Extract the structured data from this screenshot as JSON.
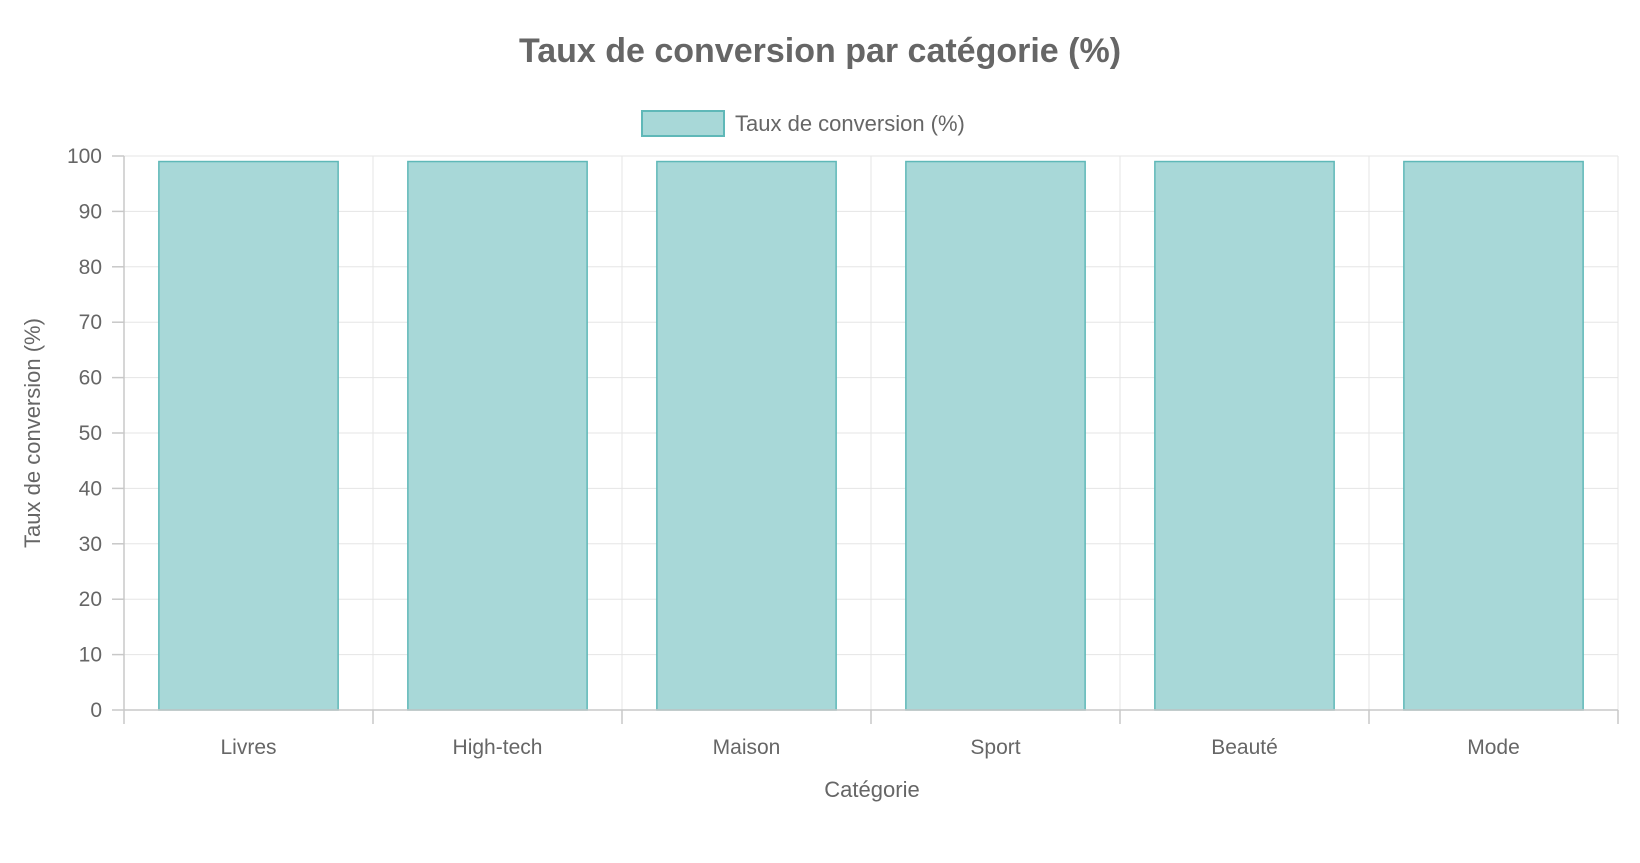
{
  "chart_data": {
    "type": "bar",
    "title": "Taux de conversion par catégorie (%)",
    "xlabel": "Catégorie",
    "ylabel": "Taux de conversion (%)",
    "categories": [
      "Livres",
      "High-tech",
      "Maison",
      "Sport",
      "Beauté",
      "Mode"
    ],
    "series": [
      {
        "name": "Taux de conversion (%)",
        "values": [
          99,
          99,
          99,
          99,
          99,
          99
        ]
      }
    ],
    "ylim": [
      0,
      100
    ],
    "yticks": [
      0,
      10,
      20,
      30,
      40,
      50,
      60,
      70,
      80,
      90,
      100
    ],
    "grid": true,
    "legend_position": "top-center",
    "colors": {
      "bar_fill": "#a8d8d8",
      "bar_border": "#5fb8b8",
      "text": "#666666",
      "grid": "#e5e5e5"
    }
  }
}
